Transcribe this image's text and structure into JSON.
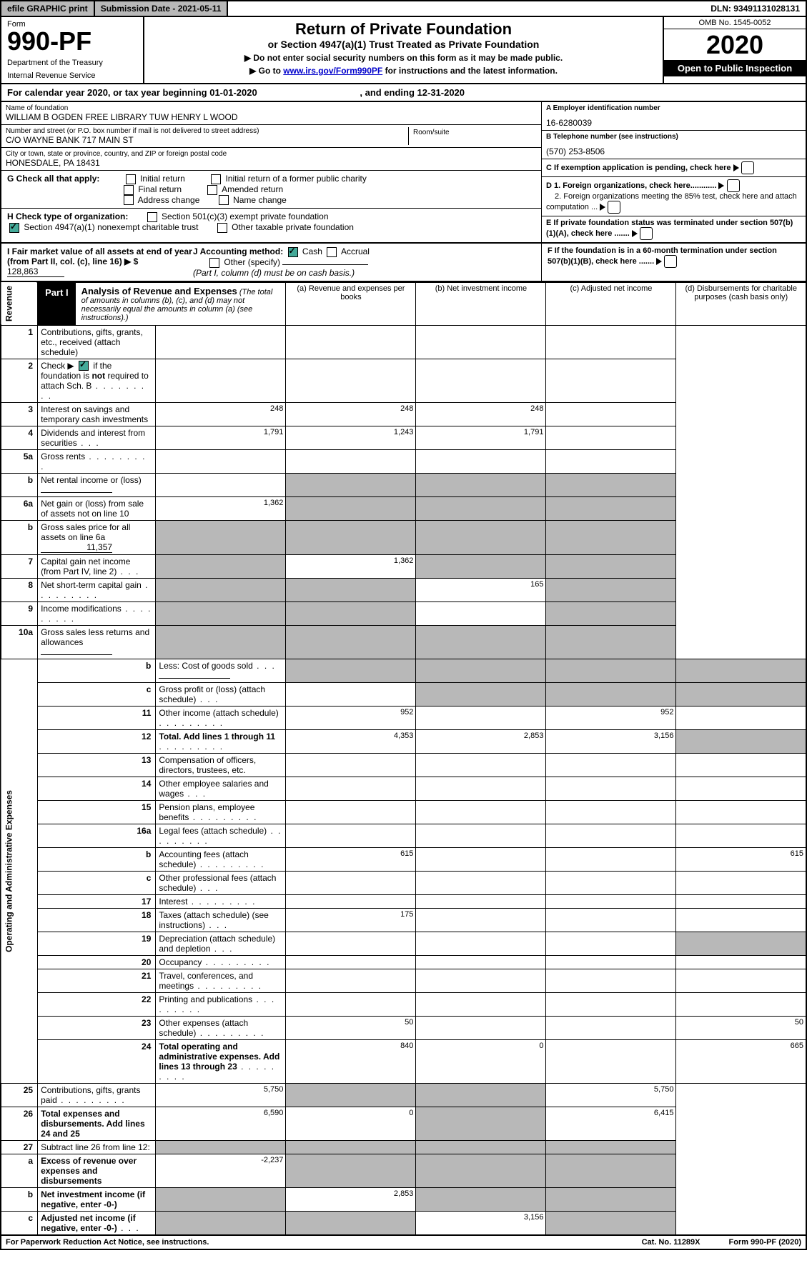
{
  "topbar": {
    "efile": "efile GRAPHIC print",
    "sub": "Submission Date - 2021-05-11",
    "dln": "DLN: 93491131028131"
  },
  "hdr": {
    "form": "Form",
    "fno": "990-PF",
    "dept": "Department of the Treasury",
    "irs": "Internal Revenue Service",
    "title": "Return of Private Foundation",
    "sub1": "or Section 4947(a)(1) Trust Treated as Private Foundation",
    "warn1": "▶ Do not enter social security numbers on this form as it may be made public.",
    "warn2": "▶ Go to ",
    "link": "www.irs.gov/Form990PF",
    "warn3": " for instructions and the latest information.",
    "omb": "OMB No. 1545-0052",
    "yr": "2020",
    "open": "Open to Public Inspection"
  },
  "caly": {
    "a": "For calendar year 2020, or tax year beginning 01-01-2020",
    "b": ", and ending 12-31-2020"
  },
  "info": {
    "name_lbl": "Name of foundation",
    "name": "WILLIAM B OGDEN FREE LIBRARY TUW HENRY L WOOD",
    "addr_lbl": "Number and street (or P.O. box number if mail is not delivered to street address)",
    "addr": "C/O WAYNE BANK 717 MAIN ST",
    "room_lbl": "Room/suite",
    "city_lbl": "City or town, state or province, country, and ZIP or foreign postal code",
    "city": "HONESDALE, PA  18431",
    "ein_lbl": "A Employer identification number",
    "ein": "16-6280039",
    "tel_lbl": "B Telephone number (see instructions)",
    "tel": "(570) 253-8506",
    "c": "C If exemption application is pending, check here",
    "d1": "D 1. Foreign organizations, check here............",
    "d2": "2. Foreign organizations meeting the 85% test, check here and attach computation ...",
    "e": "E If private foundation status was terminated under section 507(b)(1)(A), check here .......",
    "f": "F If the foundation is in a 60-month termination under section 507(b)(1)(B), check here ......."
  },
  "g": {
    "lbl": "G Check all that apply:",
    "o1": "Initial return",
    "o2": "Initial return of a former public charity",
    "o3": "Final return",
    "o4": "Amended return",
    "o5": "Address change",
    "o6": "Name change"
  },
  "h": {
    "lbl": "H Check type of organization:",
    "o1": "Section 501(c)(3) exempt private foundation",
    "o2": "Section 4947(a)(1) nonexempt charitable trust",
    "o3": "Other taxable private foundation"
  },
  "i": {
    "lbl": "I Fair market value of all assets at end of year (from Part II, col. (c), line 16) ▶ $",
    "val": "128,863"
  },
  "j": {
    "lbl": "J Accounting method:",
    "o1": "Cash",
    "o2": "Accrual",
    "o3": "Other (specify)",
    "note": "(Part I, column (d) must be on cash basis.)"
  },
  "part1": {
    "lbl": "Part I",
    "title": "Analysis of Revenue and Expenses",
    "note": "(The total of amounts in columns (b), (c), and (d) may not necessarily equal the amounts in column (a) (see instructions).)"
  },
  "cols": {
    "a": "(a)  Revenue and expenses per books",
    "b": "(b)  Net investment income",
    "c": "(c)  Adjusted net income",
    "d": "(d)  Disbursements for charitable purposes (cash basis only)"
  },
  "side": {
    "rev": "Revenue",
    "exp": "Operating and Administrative Expenses"
  },
  "rows": [
    {
      "n": "1",
      "d": "Contributions, gifts, grants, etc., received (attach schedule)"
    },
    {
      "n": "2",
      "d": "Check ▶ ☑ if the foundation is not required to attach Sch. B",
      "dots": 1,
      "ck": true
    },
    {
      "n": "3",
      "d": "Interest on savings and temporary cash investments",
      "a": "248",
      "b": "248",
      "c": "248"
    },
    {
      "n": "4",
      "d": "Dividends and interest from securities",
      "dots": "s",
      "a": "1,791",
      "b": "1,243",
      "c": "1,791"
    },
    {
      "n": "5a",
      "d": "Gross rents",
      "dots": 1
    },
    {
      "n": "b",
      "d": "Net rental income or (loss)",
      "u": 1,
      "sb": 1,
      "sc": 1,
      "sd": 1
    },
    {
      "n": "6a",
      "d": "Net gain or (loss) from sale of assets not on line 10",
      "a": "1,362",
      "sb": 1,
      "sc": 1,
      "sd": 1
    },
    {
      "n": "b",
      "d": "Gross sales price for all assets on line 6a",
      "u": 1,
      "uv": "11,357",
      "sa": 1,
      "sb": 1,
      "sc": 1,
      "sd": 1
    },
    {
      "n": "7",
      "d": "Capital gain net income (from Part IV, line 2)",
      "dots": "s",
      "sa": 1,
      "b": "1,362",
      "sc": 1,
      "sd": 1
    },
    {
      "n": "8",
      "d": "Net short-term capital gain",
      "dots": 1,
      "sa": 1,
      "sb": 1,
      "c": "165",
      "sd": 1
    },
    {
      "n": "9",
      "d": "Income modifications",
      "dots": 1,
      "sa": 1,
      "sb": 1,
      "sd": 1
    },
    {
      "n": "10a",
      "d": "Gross sales less returns and allowances",
      "u": 1,
      "sa": 1,
      "sb": 1,
      "sc": 1,
      "sd": 1
    },
    {
      "n": "b",
      "d": "Less: Cost of goods sold",
      "dots": "s",
      "u": 1,
      "sa": 1,
      "sb": 1,
      "sc": 1,
      "sd": 1
    },
    {
      "n": "c",
      "d": "Gross profit or (loss) (attach schedule)",
      "dots": "s",
      "sb": 1,
      "sc": 1,
      "sd": 1
    },
    {
      "n": "11",
      "d": "Other income (attach schedule)",
      "dots": 1,
      "a": "952",
      "c": "952"
    },
    {
      "n": "12",
      "d": "Total. Add lines 1 through 11",
      "dots": 1,
      "bold": 1,
      "a": "4,353",
      "b": "2,853",
      "c": "3,156",
      "sd": 1
    },
    {
      "n": "13",
      "d": "Compensation of officers, directors, trustees, etc."
    },
    {
      "n": "14",
      "d": "Other employee salaries and wages",
      "dots": "s"
    },
    {
      "n": "15",
      "d": "Pension plans, employee benefits",
      "dots": 1
    },
    {
      "n": "16a",
      "d": "Legal fees (attach schedule)",
      "dots": 1
    },
    {
      "n": "b",
      "d": "Accounting fees (attach schedule)",
      "dots": 1,
      "a": "615",
      "d4": "615"
    },
    {
      "n": "c",
      "d": "Other professional fees (attach schedule)",
      "dots": "s"
    },
    {
      "n": "17",
      "d": "Interest",
      "dots": 1
    },
    {
      "n": "18",
      "d": "Taxes (attach schedule) (see instructions)",
      "dots": "s",
      "a": "175"
    },
    {
      "n": "19",
      "d": "Depreciation (attach schedule) and depletion",
      "dots": "s",
      "sd": 1
    },
    {
      "n": "20",
      "d": "Occupancy",
      "dots": 1
    },
    {
      "n": "21",
      "d": "Travel, conferences, and meetings",
      "dots": 1
    },
    {
      "n": "22",
      "d": "Printing and publications",
      "dots": 1
    },
    {
      "n": "23",
      "d": "Other expenses (attach schedule)",
      "dots": 1,
      "a": "50",
      "d4": "50"
    },
    {
      "n": "24",
      "d": "Total operating and administrative expenses. Add lines 13 through 23",
      "dots": 1,
      "bold": 1,
      "a": "840",
      "b": "0",
      "d4": "665"
    },
    {
      "n": "25",
      "d": "Contributions, gifts, grants paid",
      "dots": 1,
      "a": "5,750",
      "sb": 1,
      "sc": 1,
      "d4": "5,750"
    },
    {
      "n": "26",
      "d": "Total expenses and disbursements. Add lines 24 and 25",
      "bold": 1,
      "a": "6,590",
      "b": "0",
      "sc": 1,
      "d4": "6,415"
    },
    {
      "n": "27",
      "d": "Subtract line 26 from line 12:",
      "sa": 1,
      "sb": 1,
      "sc": 1,
      "sd": 1
    },
    {
      "n": "a",
      "d": "Excess of revenue over expenses and disbursements",
      "bold": 1,
      "a": "-2,237",
      "sb": 1,
      "sc": 1,
      "sd": 1
    },
    {
      "n": "b",
      "d": "Net investment income (if negative, enter -0-)",
      "bold": 1,
      "sa": 1,
      "b": "2,853",
      "sc": 1,
      "sd": 1
    },
    {
      "n": "c",
      "d": "Adjusted net income (if negative, enter -0-)",
      "dots": "s",
      "bold": 1,
      "sa": 1,
      "sb": 1,
      "c": "3,156",
      "sd": 1
    }
  ],
  "foot": {
    "l": "For Paperwork Reduction Act Notice, see instructions.",
    "c": "Cat. No. 11289X",
    "r": "Form 990-PF (2020)"
  }
}
